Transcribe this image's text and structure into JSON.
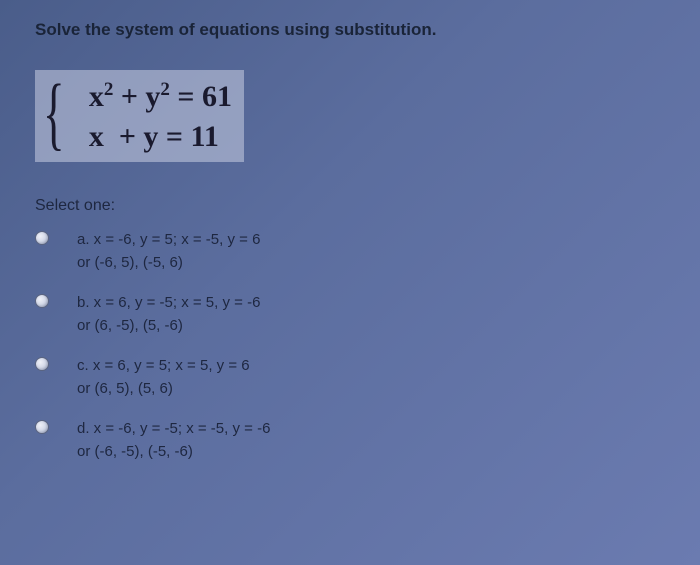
{
  "prompt": "Solve the system of equations using substitution.",
  "equation": {
    "line1_html": "x<sup>2</sup> + y<sup>2</sup> = 61",
    "line2_html": "x&nbsp;&nbsp;+&nbsp;y&nbsp;=&nbsp;11"
  },
  "select_label": "Select one:",
  "options": [
    {
      "letter": "a",
      "main": "a. x = -6, y = 5; x = -5, y = 6",
      "sub": "or (-6, 5), (-5, 6)"
    },
    {
      "letter": "b",
      "main": "b. x = 6, y = -5; x = 5, y = -6",
      "sub": "or (6, -5), (5, -6)"
    },
    {
      "letter": "c",
      "main": "c. x = 6, y = 5; x = 5, y = 6",
      "sub": "or (6, 5), (5, 6)"
    },
    {
      "letter": "d",
      "main": "d. x = -6, y = -5; x = -5, y = -6",
      "sub": "or (-6, -5), (-5, -6)"
    }
  ],
  "colors": {
    "bg_gradient_start": "#4a5d8a",
    "bg_gradient_end": "#6b7bb0",
    "text_dark": "#1a2438",
    "equation_bg": "rgba(200,205,225,0.55)"
  }
}
